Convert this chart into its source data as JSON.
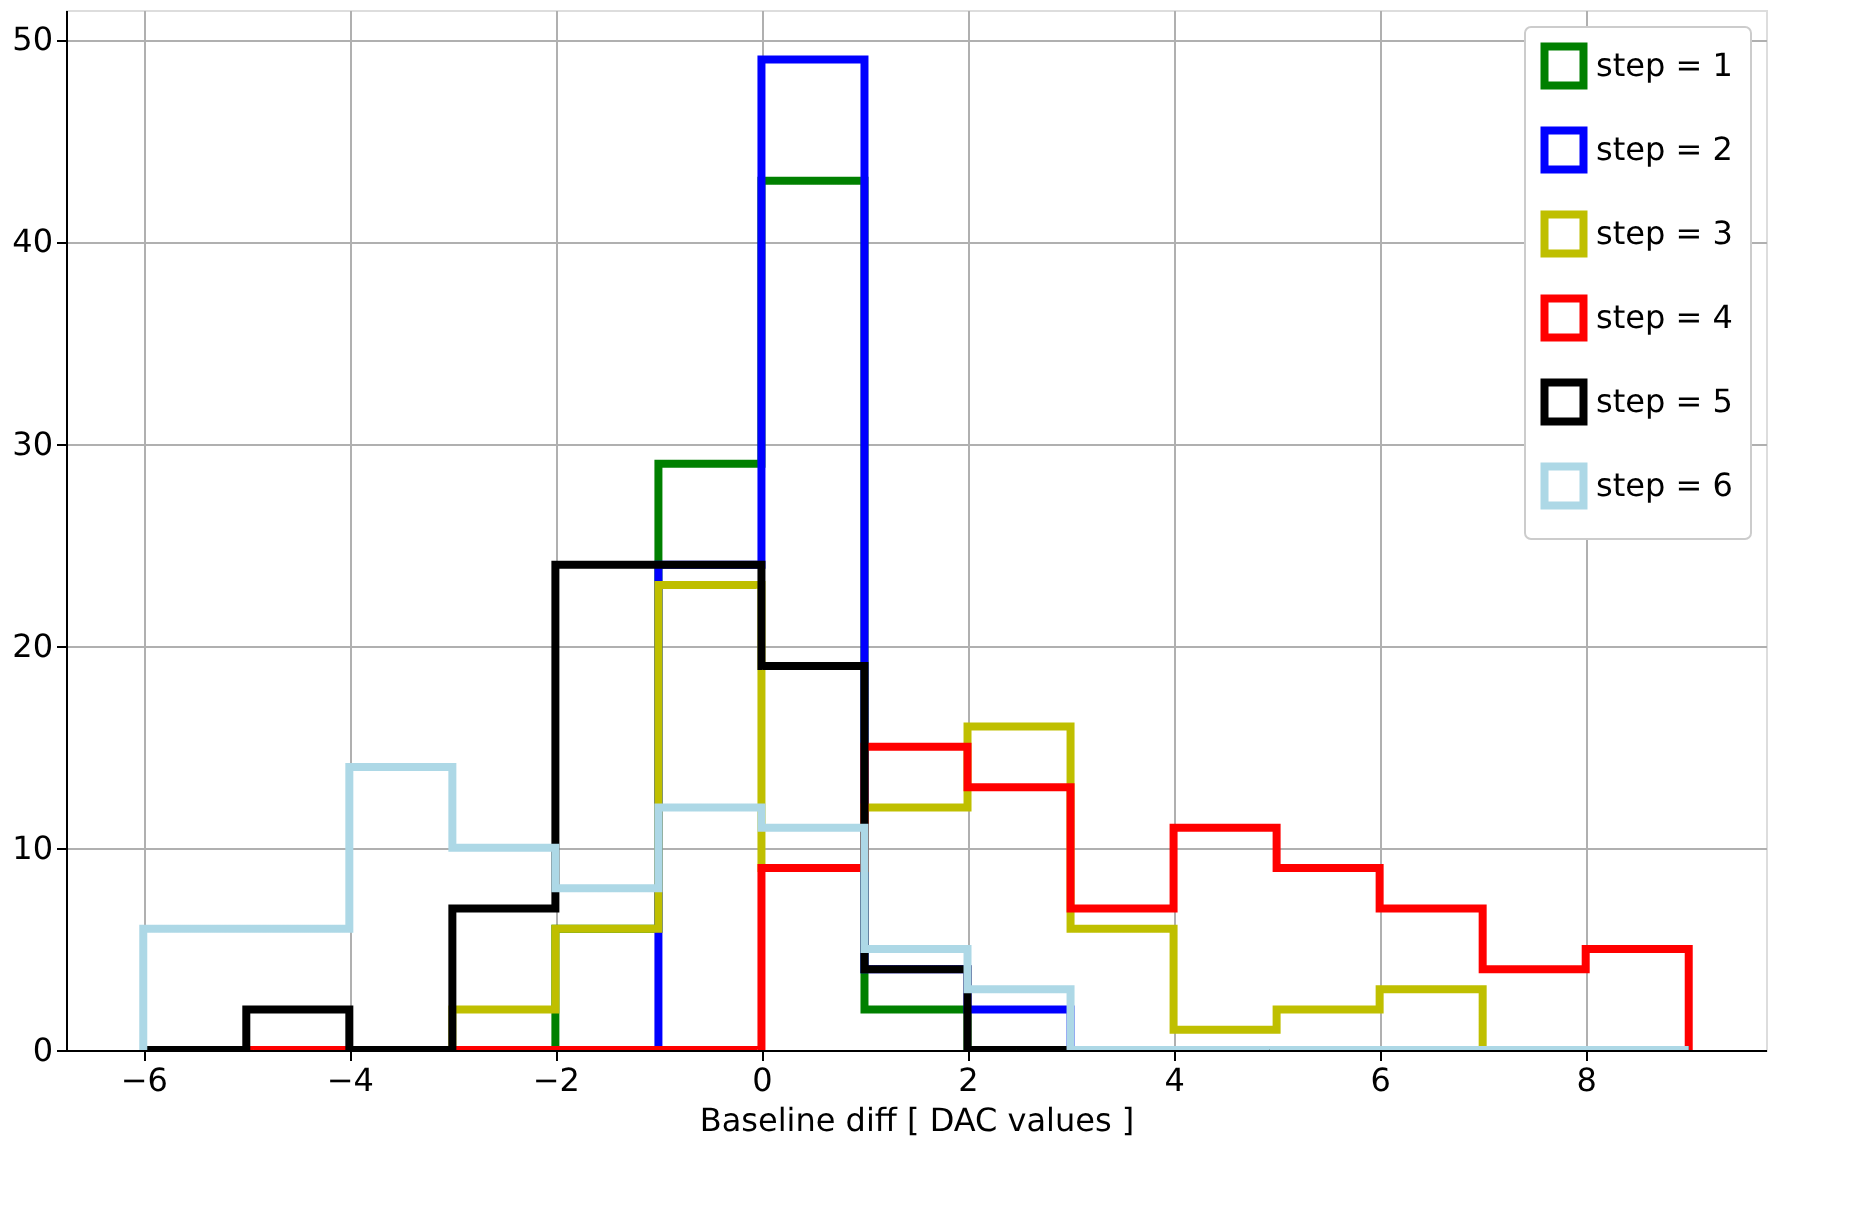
{
  "chart_data": {
    "type": "histogram",
    "xlabel": "Baseline diff [ DAC values ]",
    "xlim": [
      -6.75,
      9.75
    ],
    "ylim": [
      0,
      51.45
    ],
    "xticks": [
      -6,
      -4,
      -2,
      0,
      2,
      4,
      6,
      8
    ],
    "yticks": [
      0,
      10,
      20,
      30,
      40,
      50
    ],
    "grid": true,
    "legend": "top right",
    "line_style": "solid",
    "bins": [
      -6,
      -5,
      -4,
      -3,
      -2,
      -1,
      0,
      1,
      2,
      3,
      4,
      5,
      6,
      7,
      8,
      9
    ],
    "series": [
      {
        "name": "step = 1",
        "color": "#008000",
        "values": [
          0,
          0,
          0,
          0,
          6,
          29,
          43,
          2,
          0,
          0,
          0,
          0,
          0,
          0,
          0
        ]
      },
      {
        "name": "step = 2",
        "color": "#0000ff",
        "values": [
          0,
          0,
          0,
          0,
          0,
          24,
          49,
          4,
          2,
          0,
          0,
          0,
          0,
          0,
          0
        ]
      },
      {
        "name": "step = 3",
        "color": "#bfbf00",
        "values": [
          0,
          0,
          0,
          2,
          6,
          23,
          9,
          12,
          16,
          6,
          1,
          2,
          3,
          0,
          0
        ]
      },
      {
        "name": "step = 4",
        "color": "#ff0000",
        "values": [
          0,
          0,
          0,
          0,
          0,
          0,
          9,
          15,
          13,
          7,
          11,
          9,
          7,
          4,
          5
        ]
      },
      {
        "name": "step = 5",
        "color": "#000000",
        "values": [
          0,
          2,
          0,
          7,
          24,
          24,
          19,
          4,
          0,
          0,
          0,
          0,
          0,
          0,
          0
        ]
      },
      {
        "name": "step = 6",
        "color": "#add8e6",
        "values": [
          6,
          6,
          14,
          10,
          8,
          12,
          11,
          5,
          3,
          0,
          0,
          0,
          0,
          0,
          0
        ]
      }
    ]
  }
}
